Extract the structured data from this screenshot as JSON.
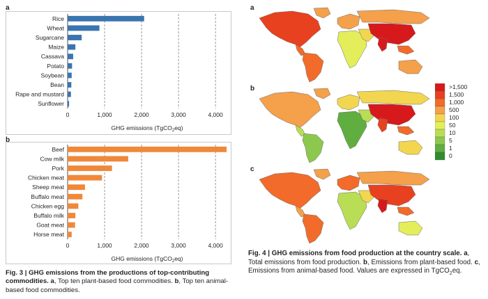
{
  "fig3": {
    "label_a": "a",
    "label_b": "b",
    "caption_title": "Fig. 3 | GHG emissions from the productions of top-contributing commodities.",
    "caption_a": "a",
    "caption_a_text": ", Top ten plant-based food commodities.",
    "caption_b": "b",
    "caption_b_text": ", Top ten animal-based food commodities."
  },
  "fig4": {
    "label_a": "a",
    "label_b": "b",
    "label_c": "c",
    "caption_title": "Fig. 4 | GHG emissions from food production at the country scale.",
    "caption_a": "a",
    "caption_a_text": ", Total emissions from food production.",
    "caption_b": "b",
    "caption_b_text": ", Emissions from plant-based food.",
    "caption_c": "c",
    "caption_c_text": ", Emissions from animal-based food. Values are expressed in TgCO",
    "caption_c_sub": "2",
    "caption_c_end": "eq."
  },
  "legend": {
    "labels": [
      ">1,500",
      "1,500",
      "1,000",
      "500",
      "100",
      "50",
      "10",
      "5",
      "1",
      "0"
    ],
    "colors": [
      "#d7191c",
      "#e8411f",
      "#f26b2a",
      "#f5a04a",
      "#f2d64f",
      "#e3ee5a",
      "#b9dd55",
      "#8cc84e",
      "#5fae3f",
      "#2f8c2e"
    ]
  },
  "chart_data": [
    {
      "type": "bar",
      "orientation": "horizontal",
      "categories": [
        "Rice",
        "Wheat",
        "Sugarcane",
        "Maize",
        "Cassava",
        "Potato",
        "Soybean",
        "Bean",
        "Rape and mustard",
        "Sunflower"
      ],
      "values": [
        2070,
        860,
        380,
        210,
        150,
        120,
        110,
        100,
        90,
        40
      ],
      "xlabel_prefix": "GHG emissions (TgCO",
      "xlabel_sub": "2",
      "xlabel_suffix": "eq)",
      "xlim": [
        0,
        4300
      ],
      "xticks": [
        "0",
        "1,000",
        "2,000",
        "3,000",
        "4,000"
      ],
      "color": "#3a75b0",
      "grid": "dashed vertical"
    },
    {
      "type": "bar",
      "orientation": "horizontal",
      "categories": [
        "Beef",
        "Cow milk",
        "Pork",
        "Chicken meat",
        "Sheep meat",
        "Buffalo meat",
        "Chicken egg",
        "Buffalo milk",
        "Goat meat",
        "Horse meat"
      ],
      "values": [
        4300,
        1640,
        1200,
        930,
        470,
        400,
        290,
        210,
        200,
        110
      ],
      "xlabel_prefix": "GHG emissions (TgCO",
      "xlabel_sub": "2",
      "xlabel_suffix": "eq)",
      "xlim": [
        0,
        4300
      ],
      "xticks": [
        "0",
        "1,000",
        "2,000",
        "3,000",
        "4,000"
      ],
      "color": "#f0883a",
      "grid": "dashed vertical"
    }
  ]
}
